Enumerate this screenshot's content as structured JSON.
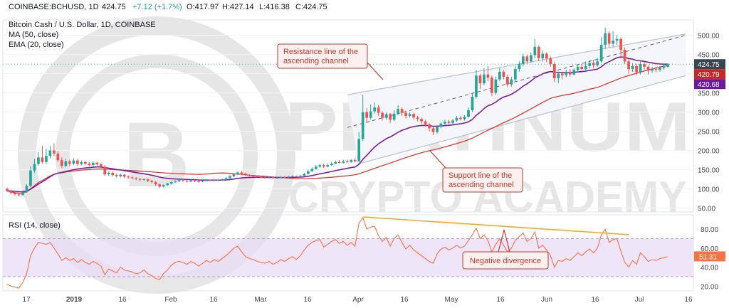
{
  "header": {
    "symbol": "COINBASE:BCHUSD, 1D",
    "price": "424.75",
    "change": "+7.12 (+1.7%)",
    "open": "O:417.97",
    "high": "H:427.14",
    "low": "L:416.38",
    "close": "C:424.75",
    "title": "Bitcoin Cash / U.S. Dollar, 1D, COINBASE",
    "ma_label": "MA (50, close)",
    "ema_label": "EMA (20, close)",
    "rsi_label": "RSI (14, close)"
  },
  "watermark": {
    "line1": "PLATINUM",
    "line2": "CRYPTO ACADEMY",
    "logo_letter": "B"
  },
  "annotations": {
    "resistance": [
      "Resistance line of the",
      "ascending channel"
    ],
    "support": [
      "Support line of the",
      "ascending channel"
    ],
    "divergence": "Negative divergence"
  },
  "colors": {
    "up": "#26a69a",
    "down": "#ef5350",
    "ma50": "#e53935",
    "ema20": "#7b1fa2",
    "rsi": "#ff7043",
    "divergence": "#f7a62b",
    "channel": "#cfd6e0",
    "box_border": "#c23b2e",
    "box_fill": "#fdf0ee",
    "price_tag": "#37474f",
    "ma_tag": "#c62828",
    "ema_tag": "#6a1b9a"
  },
  "chart_data": [
    {
      "type": "candlestick",
      "pane": "price",
      "title": "Bitcoin Cash / U.S. Dollar, 1D, COINBASE",
      "x_ticks": [
        "17",
        "2019",
        "16",
        "Feb",
        "16",
        "Mar",
        "16",
        "Apr",
        "16",
        "May",
        "16",
        "Jun",
        "16",
        "Jul",
        "16"
      ],
      "y_ticks": [
        50,
        100,
        150,
        200,
        250,
        300,
        350,
        400,
        450,
        500
      ],
      "ylim": [
        40,
        540
      ],
      "last": {
        "price": 424.75,
        "ma50": 420.79,
        "ema20": 420.68
      },
      "candles": [
        [
          100,
          95,
          104,
          92
        ],
        [
          95,
          90,
          98,
          86
        ],
        [
          90,
          86,
          94,
          83
        ],
        [
          86,
          84,
          90,
          80
        ],
        [
          84,
          92,
          96,
          82
        ],
        [
          92,
          108,
          112,
          90
        ],
        [
          108,
          148,
          158,
          104
        ],
        [
          148,
          165,
          178,
          142
        ],
        [
          165,
          182,
          196,
          160
        ],
        [
          182,
          170,
          212,
          165
        ],
        [
          170,
          186,
          204,
          166
        ],
        [
          186,
          200,
          212,
          180
        ],
        [
          200,
          192,
          218,
          185
        ],
        [
          192,
          175,
          198,
          170
        ],
        [
          175,
          160,
          182,
          154
        ],
        [
          160,
          172,
          178,
          156
        ],
        [
          172,
          166,
          176,
          160
        ],
        [
          166,
          174,
          180,
          162
        ],
        [
          174,
          165,
          178,
          160
        ],
        [
          165,
          170,
          174,
          161
        ],
        [
          170,
          166,
          173,
          162
        ],
        [
          166,
          162,
          170,
          158
        ],
        [
          162,
          168,
          172,
          158
        ],
        [
          168,
          164,
          171,
          160
        ],
        [
          164,
          158,
          168,
          154
        ],
        [
          158,
          138,
          162,
          134
        ],
        [
          138,
          142,
          146,
          134
        ],
        [
          142,
          136,
          145,
          132
        ],
        [
          136,
          133,
          140,
          130
        ],
        [
          133,
          137,
          140,
          130
        ],
        [
          137,
          132,
          139,
          128
        ],
        [
          132,
          130,
          135,
          126
        ],
        [
          130,
          128,
          133,
          125
        ],
        [
          128,
          126,
          131,
          122
        ],
        [
          126,
          124,
          129,
          120
        ],
        [
          124,
          125,
          128,
          121
        ],
        [
          125,
          121,
          127,
          118
        ],
        [
          121,
          118,
          123,
          115
        ],
        [
          118,
          112,
          120,
          108
        ],
        [
          112,
          106,
          114,
          102
        ],
        [
          106,
          110,
          112,
          104
        ],
        [
          110,
          114,
          116,
          108
        ],
        [
          114,
          118,
          120,
          112
        ],
        [
          118,
          120,
          122,
          116
        ],
        [
          120,
          123,
          126,
          118
        ],
        [
          123,
          121,
          125,
          119
        ],
        [
          121,
          119,
          123,
          117
        ],
        [
          119,
          122,
          124,
          118
        ],
        [
          122,
          120,
          124,
          118
        ],
        [
          120,
          118,
          122,
          116
        ],
        [
          118,
          120,
          122,
          117
        ],
        [
          120,
          123,
          125,
          119
        ],
        [
          123,
          121,
          124,
          120
        ],
        [
          121,
          124,
          126,
          120
        ],
        [
          124,
          122,
          126,
          120
        ],
        [
          122,
          125,
          127,
          121
        ],
        [
          125,
          128,
          131,
          123
        ],
        [
          128,
          133,
          136,
          126
        ],
        [
          133,
          138,
          141,
          131
        ],
        [
          138,
          143,
          146,
          136
        ],
        [
          143,
          140,
          146,
          138
        ],
        [
          140,
          136,
          142,
          134
        ],
        [
          136,
          134,
          138,
          132
        ],
        [
          134,
          133,
          136,
          131
        ],
        [
          133,
          131,
          135,
          129
        ],
        [
          131,
          130,
          133,
          128
        ],
        [
          130,
          129,
          132,
          127
        ],
        [
          129,
          130,
          132,
          127
        ],
        [
          130,
          128,
          132,
          126
        ],
        [
          128,
          129,
          131,
          127
        ],
        [
          129,
          131,
          133,
          127
        ],
        [
          131,
          130,
          133,
          128
        ],
        [
          130,
          132,
          134,
          129
        ],
        [
          132,
          133,
          135,
          130
        ],
        [
          133,
          131,
          135,
          130
        ],
        [
          131,
          134,
          136,
          130
        ],
        [
          134,
          139,
          142,
          133
        ],
        [
          139,
          146,
          150,
          138
        ],
        [
          146,
          152,
          156,
          144
        ],
        [
          152,
          158,
          162,
          150
        ],
        [
          158,
          162,
          166,
          155
        ],
        [
          162,
          158,
          166,
          154
        ],
        [
          158,
          162,
          166,
          156
        ],
        [
          162,
          166,
          170,
          160
        ],
        [
          166,
          170,
          174,
          164
        ],
        [
          170,
          168,
          175,
          166
        ],
        [
          168,
          172,
          176,
          166
        ],
        [
          172,
          170,
          176,
          168
        ],
        [
          170,
          175,
          178,
          168
        ],
        [
          175,
          172,
          180,
          170
        ],
        [
          172,
          230,
          248,
          170
        ],
        [
          230,
          300,
          345,
          225
        ],
        [
          300,
          285,
          310,
          272
        ],
        [
          285,
          302,
          320,
          280
        ],
        [
          302,
          312,
          325,
          296
        ],
        [
          312,
          298,
          318,
          290
        ],
        [
          298,
          285,
          302,
          278
        ],
        [
          285,
          295,
          300,
          280
        ],
        [
          295,
          280,
          298,
          272
        ],
        [
          280,
          296,
          305,
          276
        ],
        [
          296,
          308,
          318,
          292
        ],
        [
          308,
          298,
          312,
          290
        ],
        [
          298,
          290,
          304,
          284
        ],
        [
          290,
          295,
          300,
          286
        ],
        [
          295,
          286,
          298,
          280
        ],
        [
          286,
          282,
          290,
          276
        ],
        [
          282,
          276,
          286,
          270
        ],
        [
          276,
          268,
          280,
          262
        ],
        [
          268,
          258,
          272,
          250
        ],
        [
          258,
          248,
          262,
          240
        ],
        [
          248,
          262,
          266,
          244
        ],
        [
          262,
          270,
          274,
          258
        ],
        [
          270,
          275,
          280,
          266
        ],
        [
          275,
          272,
          280,
          268
        ],
        [
          272,
          278,
          282,
          268
        ],
        [
          278,
          285,
          290,
          275
        ],
        [
          285,
          282,
          290,
          278
        ],
        [
          282,
          288,
          292,
          278
        ],
        [
          288,
          305,
          312,
          285
        ],
        [
          305,
          340,
          350,
          300
        ],
        [
          340,
          395,
          410,
          335
        ],
        [
          395,
          375,
          400,
          360
        ],
        [
          375,
          398,
          415,
          370
        ],
        [
          398,
          390,
          420,
          380
        ],
        [
          390,
          350,
          395,
          342
        ],
        [
          350,
          385,
          392,
          345
        ],
        [
          385,
          405,
          415,
          380
        ],
        [
          405,
          392,
          410,
          385
        ],
        [
          392,
          372,
          398,
          365
        ],
        [
          372,
          385,
          392,
          366
        ],
        [
          385,
          412,
          420,
          380
        ],
        [
          412,
          425,
          432,
          405
        ],
        [
          425,
          445,
          452,
          420
        ],
        [
          445,
          432,
          450,
          425
        ],
        [
          432,
          448,
          455,
          428
        ],
        [
          448,
          470,
          490,
          440
        ],
        [
          470,
          440,
          474,
          432
        ],
        [
          440,
          452,
          460,
          432
        ],
        [
          452,
          440,
          456,
          430
        ],
        [
          440,
          425,
          445,
          418
        ],
        [
          425,
          388,
          430,
          378
        ],
        [
          388,
          400,
          405,
          375
        ],
        [
          400,
          396,
          405,
          385
        ],
        [
          396,
          405,
          410,
          390
        ],
        [
          405,
          398,
          412,
          392
        ],
        [
          398,
          410,
          414,
          395
        ],
        [
          410,
          418,
          425,
          405
        ],
        [
          418,
          412,
          426,
          408
        ],
        [
          412,
          420,
          432,
          408
        ],
        [
          420,
          428,
          436,
          415
        ],
        [
          428,
          422,
          436,
          414
        ],
        [
          422,
          432,
          440,
          418
        ],
        [
          432,
          475,
          495,
          428
        ],
        [
          475,
          505,
          520,
          465
        ],
        [
          505,
          478,
          510,
          468
        ],
        [
          478,
          486,
          510,
          470
        ],
        [
          486,
          490,
          500,
          475
        ],
        [
          490,
          462,
          495,
          440
        ],
        [
          462,
          432,
          468,
          425
        ],
        [
          432,
          412,
          438,
          400
        ],
        [
          412,
          420,
          428,
          405
        ],
        [
          420,
          404,
          426,
          396
        ],
        [
          404,
          425,
          432,
          398
        ],
        [
          425,
          418,
          430,
          410
        ],
        [
          418,
          408,
          422,
          398
        ],
        [
          408,
          412,
          418,
          402
        ],
        [
          412,
          410,
          418,
          404
        ],
        [
          410,
          415,
          420,
          405
        ],
        [
          415,
          420,
          424,
          410
        ],
        [
          418,
          425,
          427,
          416
        ]
      ]
    },
    {
      "type": "line",
      "pane": "rsi",
      "title": "RSI (14, close)",
      "y_ticks": [
        20,
        40,
        60,
        80
      ],
      "ylim": [
        15,
        95
      ],
      "bands": [
        30,
        70
      ],
      "last": 51.31,
      "values": [
        22,
        20,
        19,
        18,
        24,
        33,
        52,
        60,
        66,
        65,
        64,
        66,
        60,
        54,
        47,
        50,
        47,
        49,
        45,
        48,
        45,
        43,
        46,
        44,
        41,
        32,
        38,
        36,
        34,
        40,
        37,
        36,
        35,
        33,
        34,
        37,
        33,
        31,
        28,
        27,
        33,
        37,
        42,
        45,
        46,
        45,
        43,
        46,
        44,
        41,
        44,
        47,
        45,
        48,
        46,
        49,
        52,
        56,
        60,
        62,
        56,
        51,
        49,
        48,
        46,
        45,
        44,
        46,
        43,
        45,
        48,
        46,
        49,
        51,
        48,
        52,
        58,
        63,
        66,
        68,
        69,
        61,
        64,
        67,
        69,
        65,
        67,
        63,
        66,
        62,
        86,
        92,
        80,
        82,
        83,
        73,
        67,
        71,
        62,
        70,
        74,
        66,
        59,
        63,
        58,
        55,
        52,
        49,
        46,
        44,
        54,
        59,
        61,
        58,
        60,
        63,
        60,
        62,
        68,
        74,
        81,
        70,
        74,
        68,
        56,
        64,
        70,
        63,
        56,
        60,
        68,
        72,
        76,
        67,
        70,
        77,
        60,
        63,
        58,
        52,
        40,
        47,
        46,
        49,
        47,
        51,
        55,
        52,
        56,
        59,
        55,
        60,
        74,
        80,
        66,
        69,
        70,
        57,
        45,
        40,
        47,
        43,
        55,
        51,
        46,
        48,
        47,
        49,
        50,
        51
      ]
    }
  ]
}
